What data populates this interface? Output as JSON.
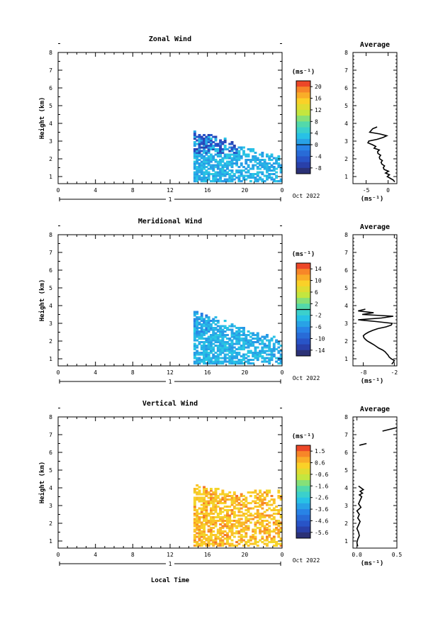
{
  "figure": {
    "xlabel": "Local Time",
    "x_ticks": [
      "0",
      "4",
      "8",
      "12",
      "16",
      "20",
      "0"
    ],
    "day_marker": "1",
    "date_label": "Oct 2022",
    "ylabel": "Height (km)",
    "y_ticks": [
      "1",
      "2",
      "3",
      "4",
      "5",
      "6",
      "7",
      "8"
    ],
    "unit_label": "(ms⁻¹)"
  },
  "chart_data": [
    {
      "type": "heatmap",
      "title": "Zonal Wind",
      "xlabel": "",
      "ylabel": "Height (km)",
      "xlim": [
        0,
        24
      ],
      "ylim": [
        0.6,
        8
      ],
      "colorbar": {
        "label": "(ms⁻¹)",
        "tick_labels": [
          "20",
          "16",
          "12",
          "8",
          "4",
          "0",
          "-4",
          "-8"
        ],
        "range": [
          -10,
          22
        ],
        "zero_line": 0
      },
      "data_extent": {
        "time_start_h": 14.5,
        "time_end_h": 24,
        "height_min_km": 0.7,
        "height_max_km": 3.4
      },
      "dominant_values": [
        0,
        4
      ],
      "average_profile": {
        "title": "Average",
        "xlabel": "(ms⁻¹)",
        "x_ticks": [
          "-5",
          "0"
        ],
        "xlim": [
          -8,
          2
        ],
        "ylim": [
          0.6,
          8
        ],
        "heights": [
          0.7,
          0.8,
          0.9,
          1.0,
          1.1,
          1.2,
          1.3,
          1.4,
          1.5,
          1.6,
          1.7,
          1.8,
          1.9,
          2.0,
          2.1,
          2.2,
          2.3,
          2.4,
          2.5,
          2.6,
          2.7,
          2.8,
          2.9,
          3.0,
          3.1,
          3.2,
          3.3,
          3.4,
          3.5,
          3.7,
          3.8
        ],
        "values": [
          1.5,
          1.2,
          0.5,
          -0.2,
          0.3,
          -0.6,
          0.1,
          -0.9,
          -1.1,
          -0.8,
          -1.4,
          -1.6,
          -1.3,
          -1.9,
          -2.0,
          -1.7,
          -2.3,
          -2.4,
          -2.0,
          -3.2,
          -2.8,
          -3.6,
          -4.6,
          -4.4,
          -2.5,
          -1.2,
          -0.3,
          -1.8,
          -4.2,
          -3.5,
          -2.5
        ]
      }
    },
    {
      "type": "heatmap",
      "title": "Meridional Wind",
      "xlabel": "",
      "ylabel": "Height (km)",
      "xlim": [
        0,
        24
      ],
      "ylim": [
        0.6,
        8
      ],
      "colorbar": {
        "label": "(ms⁻¹)",
        "tick_labels": [
          "14",
          "10",
          "6",
          "2",
          "-2",
          "-6",
          "-10",
          "-14"
        ],
        "range": [
          -16,
          16
        ],
        "zero_line": 0
      },
      "data_extent": {
        "time_start_h": 14.5,
        "time_end_h": 24,
        "height_min_km": 0.7,
        "height_max_km": 3.4
      },
      "dominant_values": [
        -6,
        -2
      ],
      "average_profile": {
        "title": "Average",
        "xlabel": "(ms⁻¹)",
        "x_ticks": [
          "-8",
          "-2"
        ],
        "xlim": [
          -10,
          -1.5
        ],
        "ylim": [
          0.6,
          8
        ],
        "heights": [
          0.7,
          0.8,
          0.9,
          1.0,
          1.1,
          1.2,
          1.3,
          1.4,
          1.5,
          1.6,
          1.7,
          1.8,
          1.9,
          2.0,
          2.1,
          2.2,
          2.3,
          2.4,
          2.5,
          2.6,
          2.7,
          2.8,
          2.9,
          3.0,
          3.1,
          3.2,
          3.3,
          3.4,
          3.5,
          3.6,
          3.7,
          3.8
        ],
        "values": [
          -2.5,
          -2.2,
          -2.0,
          -2.6,
          -3.0,
          -3.2,
          -3.5,
          -3.8,
          -4.3,
          -5.0,
          -5.5,
          -6.0,
          -6.6,
          -7.2,
          -7.6,
          -7.9,
          -8.0,
          -7.6,
          -7.0,
          -6.2,
          -5.2,
          -3.6,
          -2.6,
          -2.4,
          -5.5,
          -9.0,
          -4.5,
          -2.2,
          -8.2,
          -6.0,
          -9.0,
          -7.6
        ]
      }
    },
    {
      "type": "heatmap",
      "title": "Vertical Wind",
      "xlabel": "Local Time",
      "ylabel": "Height (km)",
      "xlim": [
        0,
        24
      ],
      "ylim": [
        0.6,
        8
      ],
      "colorbar": {
        "label": "(ms⁻¹)",
        "tick_labels": [
          "1.5",
          "0.6",
          "-0.6",
          "-1.6",
          "-2.6",
          "-3.6",
          "-4.6",
          "-5.6"
        ],
        "range": [
          -6,
          2
        ]
      },
      "data_extent": {
        "time_start_h": 14.5,
        "time_end_h": 24,
        "height_min_km": 0.7,
        "height_max_km": 3.9
      },
      "dominant_values": [
        0,
        0.6
      ],
      "average_profile": {
        "title": "Average",
        "xlabel": "(ms⁻¹)",
        "x_ticks": [
          "0.0",
          "0.5"
        ],
        "xlim": [
          -0.05,
          0.5
        ],
        "ylim": [
          0.6,
          8
        ],
        "heights": [
          0.7,
          0.9,
          1.1,
          1.3,
          1.5,
          1.7,
          1.9,
          2.1,
          2.3,
          2.5,
          2.7,
          2.9,
          3.1,
          3.3,
          3.5,
          3.6,
          3.7,
          3.8,
          3.9,
          4.0,
          4.1
        ],
        "values": [
          0.01,
          0.0,
          0.01,
          0.03,
          0.02,
          0.0,
          0.02,
          0.04,
          0.01,
          0.03,
          0.0,
          0.05,
          0.02,
          0.04,
          0.06,
          0.03,
          0.07,
          0.04,
          0.08,
          0.05,
          0.02
        ],
        "extra_segments": [
          {
            "heights": [
              6.4,
              6.5
            ],
            "values": [
              0.03,
              0.12
            ]
          },
          {
            "heights": [
              7.2,
              7.4
            ],
            "values": [
              0.32,
              0.5
            ]
          }
        ]
      }
    }
  ]
}
